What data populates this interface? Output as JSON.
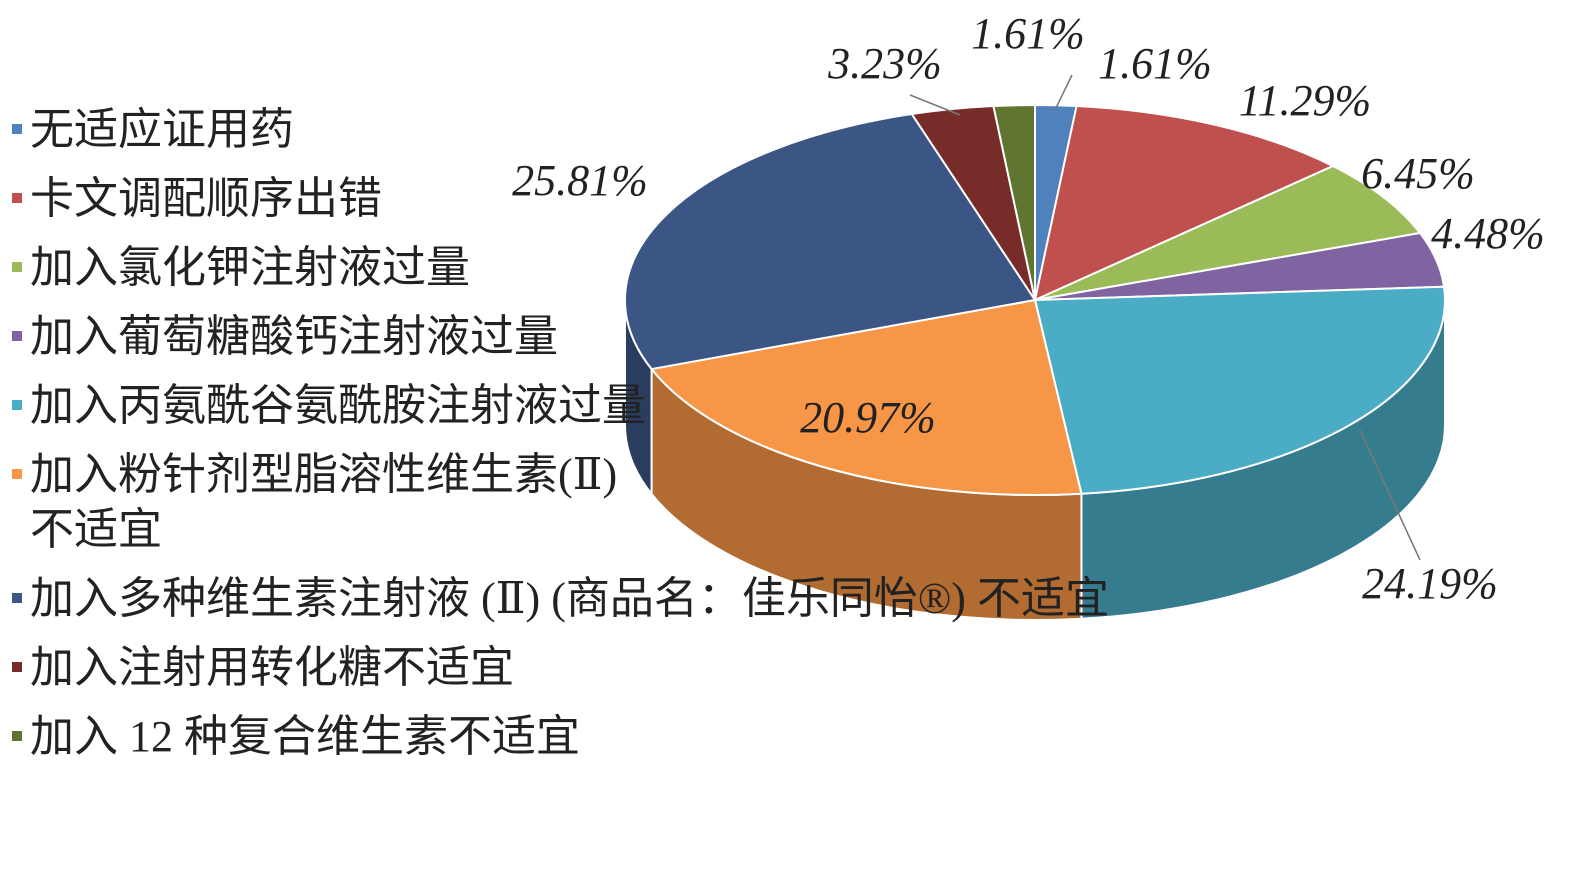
{
  "chart_data": {
    "type": "pie",
    "categories": [
      "无适应证用药",
      "卡文调配顺序出错",
      "加入氯化钾注射液过量",
      "加入葡萄糖酸钙注射液过量",
      "加入丙氨酰谷氨酰胺注射液过量",
      "加入粉针剂型脂溶性维生素(Ⅱ)不适宜",
      "加入多种维生素注射液 (Ⅱ) (商品名：佳乐同怡®) 不适宜",
      "加入注射用转化糖不适宜",
      "加入 12 种复合维生素不适宜"
    ],
    "values": [
      1.61,
      11.29,
      6.45,
      4.48,
      24.19,
      20.97,
      25.81,
      3.23,
      1.61
    ],
    "value_labels": [
      "1.61%",
      "11.29%",
      "6.45%",
      "4.48%",
      "24.19%",
      "20.97%",
      "25.81%",
      "3.23%",
      "1.61%"
    ],
    "colors": [
      "#4f81bd",
      "#c0504d",
      "#9bbb59",
      "#8064a2",
      "#4bacc6",
      "#f79646",
      "#3b5584",
      "#772c2a",
      "#5f7530"
    ],
    "legend": "left"
  }
}
